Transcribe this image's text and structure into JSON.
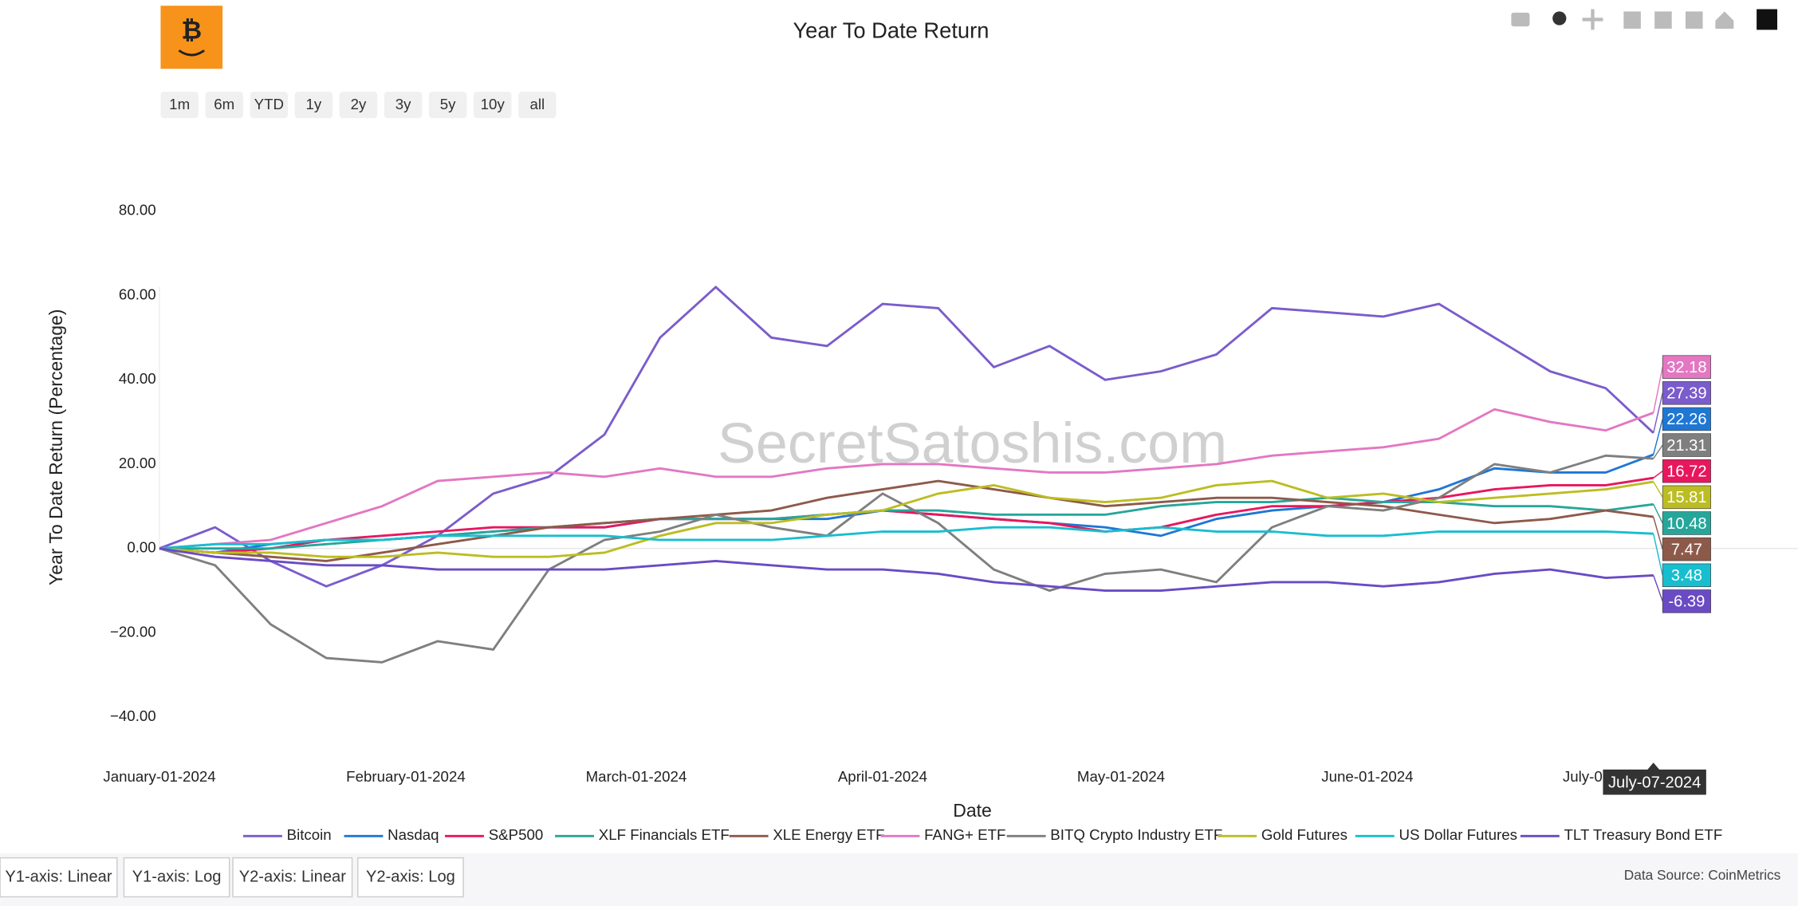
{
  "chart_data": {
    "type": "line",
    "title": "Year To Date Return",
    "xlabel": "Date",
    "ylabel": "Year To Date Return (Percentage)",
    "x": [
      "January-01-2024",
      "January-08-2024",
      "January-15-2024",
      "January-22-2024",
      "January-29-2024",
      "February-05-2024",
      "February-12-2024",
      "February-19-2024",
      "February-26-2024",
      "March-04-2024",
      "March-11-2024",
      "March-18-2024",
      "March-25-2024",
      "April-01-2024",
      "April-08-2024",
      "April-15-2024",
      "April-22-2024",
      "April-29-2024",
      "May-06-2024",
      "May-13-2024",
      "May-20-2024",
      "May-27-2024",
      "June-03-2024",
      "June-10-2024",
      "June-17-2024",
      "June-24-2024",
      "July-01-2024",
      "July-07-2024"
    ],
    "xlim": [
      "January-01-2024",
      "July-07-2024"
    ],
    "xticks": [
      "January-01-2024",
      "February-01-2024",
      "March-01-2024",
      "April-01-2024",
      "May-01-2024",
      "June-01-2024",
      "July-01-2024"
    ],
    "ylim": [
      -50,
      92
    ],
    "yticks": [
      {
        "value": -40,
        "label": "−40.00"
      },
      {
        "value": -20,
        "label": "−20.00"
      },
      {
        "value": 0,
        "label": "0.00"
      },
      {
        "value": 20,
        "label": "20.00"
      },
      {
        "value": 40,
        "label": "40.00"
      },
      {
        "value": 60,
        "label": "60.00"
      },
      {
        "value": 80,
        "label": "80.00"
      }
    ],
    "grid": false,
    "zeroline": true,
    "legend": "bottom",
    "hover_label": "July-07-2024",
    "series": [
      {
        "name": "Bitcoin",
        "color": "#7b5ccc",
        "values": [
          0,
          5,
          -3,
          -9,
          -4,
          3,
          13,
          17,
          27,
          50,
          62,
          50,
          48,
          58,
          57,
          43,
          48,
          40,
          42,
          46,
          57,
          56,
          55,
          58,
          50,
          42,
          38,
          27.39
        ],
        "value_labels": [
          "27.39"
        ]
      },
      {
        "name": "Nasdaq",
        "color": "#1f77d4",
        "values": [
          0,
          -1,
          1,
          2,
          2,
          3,
          4,
          5,
          5,
          7,
          7,
          7,
          7,
          9,
          8,
          7,
          6,
          5,
          3,
          7,
          9,
          10,
          11,
          14,
          19,
          18,
          18,
          22.26
        ],
        "value_labels": [
          "22.26"
        ]
      },
      {
        "name": "S&P500",
        "color": "#e8175d",
        "values": [
          0,
          -1,
          0,
          2,
          3,
          4,
          5,
          5,
          5,
          7,
          7,
          7,
          8,
          9,
          8,
          7,
          6,
          4,
          5,
          8,
          10,
          10,
          11,
          12,
          14,
          15,
          15,
          16.72
        ],
        "value_labels": [
          "16.72"
        ]
      },
      {
        "name": "XLF Financials ETF",
        "color": "#26a69a",
        "values": [
          0,
          0,
          0,
          1,
          2,
          3,
          4,
          5,
          6,
          7,
          7,
          7,
          8,
          9,
          9,
          8,
          8,
          8,
          10,
          11,
          11,
          12,
          11,
          11,
          10,
          10,
          9,
          10.48
        ],
        "value_labels": [
          "10.48"
        ]
      },
      {
        "name": "XLE Energy ETF",
        "color": "#8d5a4a",
        "values": [
          0,
          -1,
          -2,
          -3,
          -1,
          1,
          3,
          5,
          6,
          7,
          8,
          9,
          12,
          14,
          16,
          14,
          12,
          10,
          11,
          12,
          12,
          11,
          10,
          8,
          6,
          7,
          9,
          7.47
        ],
        "value_labels": [
          "7.47"
        ]
      },
      {
        "name": "FANG+ ETF",
        "color": "#e377c2",
        "values": [
          0,
          1,
          2,
          6,
          10,
          16,
          17,
          18,
          17,
          19,
          17,
          17,
          19,
          20,
          20,
          19,
          18,
          18,
          19,
          20,
          22,
          23,
          24,
          26,
          33,
          30,
          28,
          32.18
        ],
        "value_labels": [
          "32.18"
        ]
      },
      {
        "name": "BITQ Crypto Industry ETF",
        "color": "#7f7f7f",
        "values": [
          0,
          -4,
          -18,
          -26,
          -27,
          -22,
          -24,
          -5,
          2,
          4,
          8,
          5,
          3,
          13,
          6,
          -5,
          -10,
          -6,
          -5,
          -8,
          5,
          10,
          9,
          12,
          20,
          18,
          22,
          21.31
        ],
        "value_labels": [
          "21.31"
        ]
      },
      {
        "name": "Gold Futures",
        "color": "#bcbd22",
        "values": [
          0,
          -1,
          -1,
          -2,
          -2,
          -1,
          -2,
          -2,
          -1,
          3,
          6,
          6,
          8,
          9,
          13,
          15,
          12,
          11,
          12,
          15,
          16,
          12,
          13,
          11,
          12,
          13,
          14,
          15.81
        ],
        "value_labels": [
          "15.81"
        ]
      },
      {
        "name": "US Dollar Futures",
        "color": "#17becf",
        "values": [
          0,
          1,
          1,
          2,
          2,
          3,
          3,
          3,
          3,
          2,
          2,
          2,
          3,
          4,
          4,
          5,
          5,
          4,
          5,
          4,
          4,
          3,
          3,
          4,
          4,
          4,
          4,
          3.48
        ],
        "value_labels": [
          "3.48"
        ]
      },
      {
        "name": "TLT Treasury Bond ETF",
        "color": "#6a4bc4",
        "values": [
          0,
          -2,
          -3,
          -4,
          -4,
          -5,
          -5,
          -5,
          -5,
          -4,
          -3,
          -4,
          -5,
          -5,
          -6,
          -8,
          -9,
          -10,
          -10,
          -9,
          -8,
          -8,
          -9,
          -8,
          -6,
          -5,
          -7,
          -6.39
        ],
        "value_labels": [
          "-6.39"
        ]
      }
    ]
  },
  "range_buttons": [
    "1m",
    "6m",
    "YTD",
    "1y",
    "2y",
    "3y",
    "5y",
    "10y",
    "all"
  ],
  "axis_buttons": [
    "Y1-axis: Linear",
    "Y1-axis: Log",
    "Y2-axis: Linear",
    "Y2-axis: Log"
  ],
  "watermark": "SecretSatoshis.com",
  "data_source": "Data Source: CoinMetrics"
}
